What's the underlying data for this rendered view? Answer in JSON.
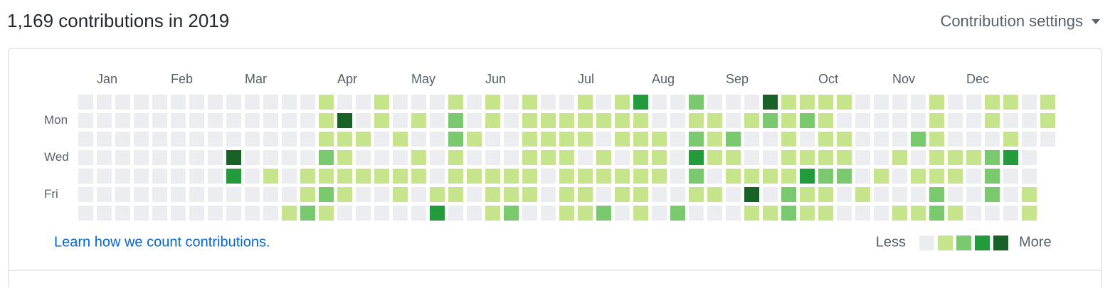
{
  "header": {
    "title": "1,169 contributions in 2019",
    "settings": "Contribution settings"
  },
  "months": [
    "Jan",
    "Feb",
    "Mar",
    "Apr",
    "May",
    "Jun",
    "Jul",
    "Aug",
    "Sep",
    "Oct",
    "Nov",
    "Dec"
  ],
  "days": [
    "Mon",
    "Wed",
    "Fri"
  ],
  "colors": [
    "#ebedf0",
    "#c6e48b",
    "#7bc96f",
    "#239a3b",
    "#196127"
  ],
  "grid": [
    [
      0,
      0,
      0,
      0,
      0,
      0,
      0,
      0,
      0,
      0,
      0,
      0,
      0,
      1,
      0,
      0,
      1,
      0,
      0,
      0,
      1,
      0,
      1,
      0,
      1,
      0,
      0,
      1,
      0,
      1,
      3,
      0,
      0,
      2,
      0,
      0,
      0,
      4,
      1,
      1,
      1,
      1,
      0,
      0,
      0,
      0,
      1,
      0,
      0,
      1,
      1,
      0,
      1
    ],
    [
      0,
      0,
      0,
      0,
      0,
      0,
      0,
      0,
      0,
      0,
      0,
      0,
      0,
      1,
      4,
      0,
      1,
      0,
      1,
      0,
      2,
      0,
      1,
      0,
      1,
      1,
      1,
      1,
      1,
      1,
      1,
      0,
      0,
      1,
      1,
      0,
      1,
      2,
      1,
      2,
      1,
      0,
      0,
      0,
      0,
      0,
      1,
      0,
      0,
      1,
      0,
      0,
      1
    ],
    [
      0,
      0,
      0,
      0,
      0,
      0,
      0,
      0,
      0,
      0,
      0,
      0,
      0,
      1,
      1,
      1,
      0,
      1,
      0,
      0,
      2,
      1,
      0,
      0,
      1,
      1,
      1,
      1,
      0,
      1,
      1,
      1,
      0,
      2,
      1,
      2,
      0,
      0,
      1,
      0,
      1,
      1,
      0,
      0,
      0,
      2,
      1,
      0,
      0,
      0,
      1,
      0,
      0
    ],
    [
      0,
      0,
      0,
      0,
      0,
      0,
      0,
      0,
      4,
      0,
      0,
      0,
      0,
      2,
      1,
      0,
      0,
      0,
      1,
      0,
      1,
      0,
      0,
      0,
      1,
      1,
      1,
      0,
      1,
      0,
      1,
      1,
      0,
      3,
      1,
      1,
      0,
      0,
      1,
      1,
      1,
      1,
      0,
      0,
      1,
      0,
      1,
      1,
      1,
      2,
      3,
      0
    ],
    [
      0,
      0,
      0,
      0,
      0,
      0,
      0,
      0,
      3,
      0,
      1,
      0,
      1,
      1,
      1,
      1,
      1,
      1,
      1,
      0,
      1,
      1,
      1,
      1,
      1,
      0,
      1,
      1,
      1,
      1,
      1,
      1,
      0,
      2,
      0,
      1,
      1,
      1,
      1,
      3,
      2,
      2,
      0,
      1,
      0,
      1,
      1,
      1,
      0,
      2,
      0,
      0
    ],
    [
      0,
      0,
      0,
      0,
      0,
      0,
      0,
      0,
      0,
      0,
      0,
      0,
      1,
      2,
      1,
      0,
      0,
      1,
      0,
      1,
      1,
      0,
      1,
      1,
      1,
      0,
      1,
      1,
      0,
      1,
      1,
      0,
      0,
      1,
      1,
      0,
      4,
      0,
      2,
      1,
      1,
      0,
      1,
      0,
      0,
      0,
      2,
      0,
      0,
      2,
      0,
      1
    ],
    [
      0,
      0,
      0,
      0,
      0,
      0,
      0,
      0,
      0,
      0,
      0,
      1,
      2,
      1,
      0,
      0,
      0,
      0,
      0,
      3,
      0,
      0,
      1,
      2,
      0,
      0,
      1,
      1,
      2,
      0,
      1,
      0,
      2,
      0,
      0,
      0,
      1,
      1,
      2,
      1,
      1,
      0,
      0,
      0,
      1,
      1,
      2,
      1,
      0,
      0,
      0,
      1
    ]
  ],
  "footer": {
    "link": "Learn how we count contributions.",
    "less": "Less",
    "more": "More"
  }
}
